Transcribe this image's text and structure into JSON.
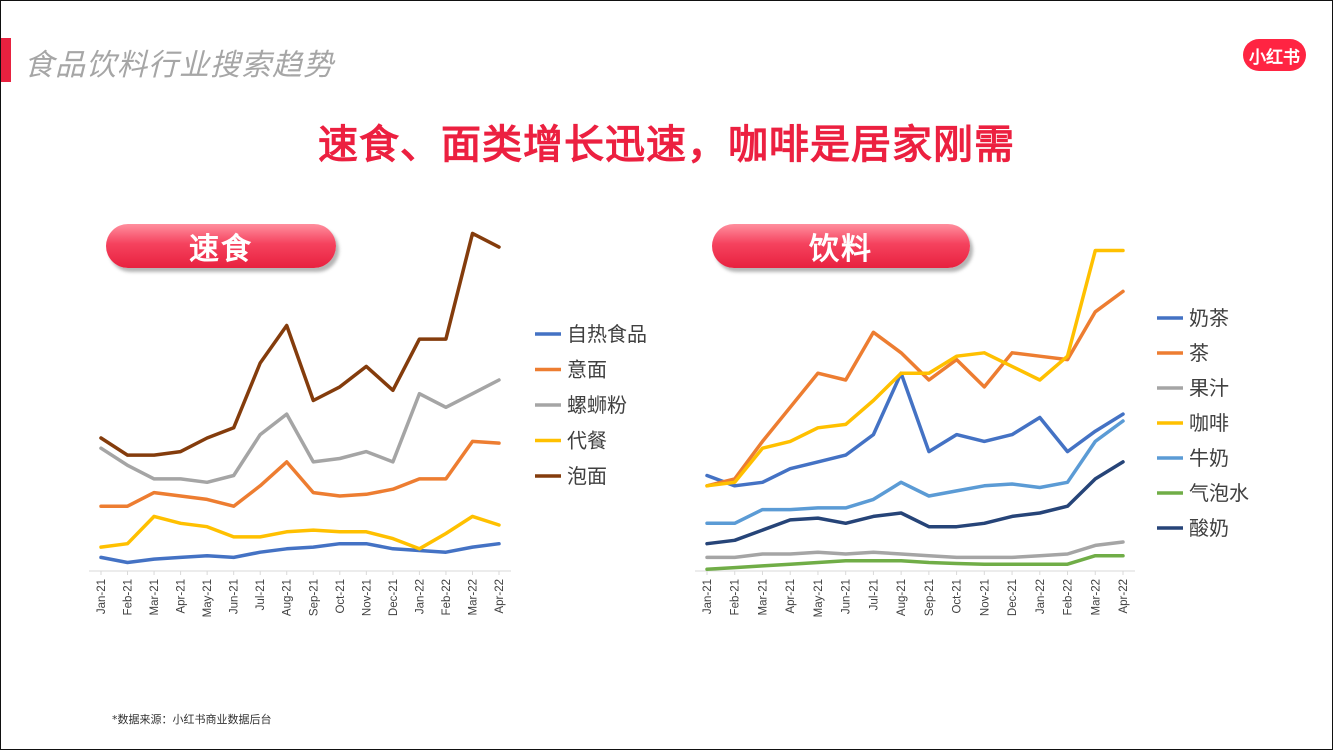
{
  "header": {
    "section_title": "食品饮料行业搜索趋势",
    "logo_text": "小红书",
    "headline": "速食、面类增长迅速，咖啡是居家刚需"
  },
  "footer": {
    "source": "*数据来源：小红书商业数据后台"
  },
  "colors": {
    "accent": "#e8213f",
    "headline": "#ec2040",
    "logo_bg": "#ff2442"
  },
  "chart_data": [
    {
      "type": "line",
      "title": "速食",
      "x": [
        "Jan-21",
        "Feb-21",
        "Mar-21",
        "Apr-21",
        "May-21",
        "Jun-21",
        "Jul-21",
        "Aug-21",
        "Sep-21",
        "Oct-21",
        "Nov-21",
        "Dec-21",
        "Jan-22",
        "Feb-22",
        "Mar-22",
        "Apr-22"
      ],
      "ylim": [
        0,
        100
      ],
      "grid": false,
      "legend": "right",
      "series": [
        {
          "name": "自热食品",
          "color": "#4472c4",
          "values": [
            4,
            2.5,
            3.5,
            4,
            4.5,
            4,
            5.5,
            6.5,
            7,
            8,
            8,
            6.5,
            6,
            5.5,
            7,
            8
          ]
        },
        {
          "name": "意面",
          "color": "#ed7d31",
          "values": [
            19,
            19,
            23,
            22,
            21,
            19,
            25,
            32,
            23,
            22,
            22.5,
            24,
            27,
            27,
            38,
            37.5
          ]
        },
        {
          "name": "螺蛳粉",
          "color": "#a5a5a5",
          "values": [
            36,
            31,
            27,
            27,
            26,
            28,
            40,
            46,
            32,
            33,
            35,
            32,
            52,
            48,
            52,
            56
          ]
        },
        {
          "name": "代餐",
          "color": "#ffc000",
          "values": [
            7,
            8,
            16,
            14,
            13,
            10,
            10,
            11.5,
            12,
            11.5,
            11.5,
            9.5,
            6.5,
            11,
            16,
            13.5
          ]
        },
        {
          "name": "泡面",
          "color": "#843c0c",
          "values": [
            39,
            34,
            34,
            35,
            39,
            42,
            61,
            72,
            50,
            54,
            60,
            53,
            68,
            68,
            99,
            95
          ]
        }
      ]
    },
    {
      "type": "line",
      "title": "饮料",
      "x": [
        "Jan-21",
        "Feb-21",
        "Mar-21",
        "Apr-21",
        "May-21",
        "Jun-21",
        "Jul-21",
        "Aug-21",
        "Sep-21",
        "Oct-21",
        "Nov-21",
        "Dec-21",
        "Jan-22",
        "Feb-22",
        "Mar-22",
        "Apr-22"
      ],
      "ylim": [
        0,
        100
      ],
      "grid": false,
      "legend": "right",
      "series": [
        {
          "name": "奶茶",
          "color": "#4472c4",
          "values": [
            28,
            25,
            26,
            30,
            32,
            34,
            40,
            58,
            35,
            40,
            38,
            40,
            45,
            35,
            41,
            46
          ]
        },
        {
          "name": "茶",
          "color": "#ed7d31",
          "values": [
            25,
            27,
            38,
            48,
            58,
            56,
            70,
            64,
            56,
            62,
            54,
            64,
            63,
            62,
            76,
            82
          ]
        },
        {
          "name": "果汁",
          "color": "#a5a5a5",
          "values": [
            4,
            4,
            5,
            5,
            5.5,
            5,
            5.5,
            5,
            4.5,
            4,
            4,
            4,
            4.5,
            5,
            7.5,
            8.5
          ]
        },
        {
          "name": "咖啡",
          "color": "#ffc000",
          "values": [
            25,
            26,
            36,
            38,
            42,
            43,
            50,
            58,
            58,
            63,
            64,
            60,
            56,
            63,
            94,
            94
          ]
        },
        {
          "name": "牛奶",
          "color": "#5b9bd5",
          "values": [
            14,
            14,
            18,
            18,
            18.5,
            18.5,
            21,
            26,
            22,
            23.5,
            25,
            25.5,
            24.5,
            26,
            38,
            44
          ]
        },
        {
          "name": "气泡水",
          "color": "#70ad47",
          "values": [
            0.5,
            1,
            1.5,
            2,
            2.5,
            3,
            3,
            3,
            2.5,
            2.2,
            2,
            2,
            2,
            2,
            4.5,
            4.5
          ]
        },
        {
          "name": "酸奶",
          "color": "#264478",
          "values": [
            8,
            9,
            12,
            15,
            15.5,
            14,
            16,
            17,
            13,
            13,
            14,
            16,
            17,
            19,
            27,
            32
          ]
        }
      ]
    }
  ]
}
